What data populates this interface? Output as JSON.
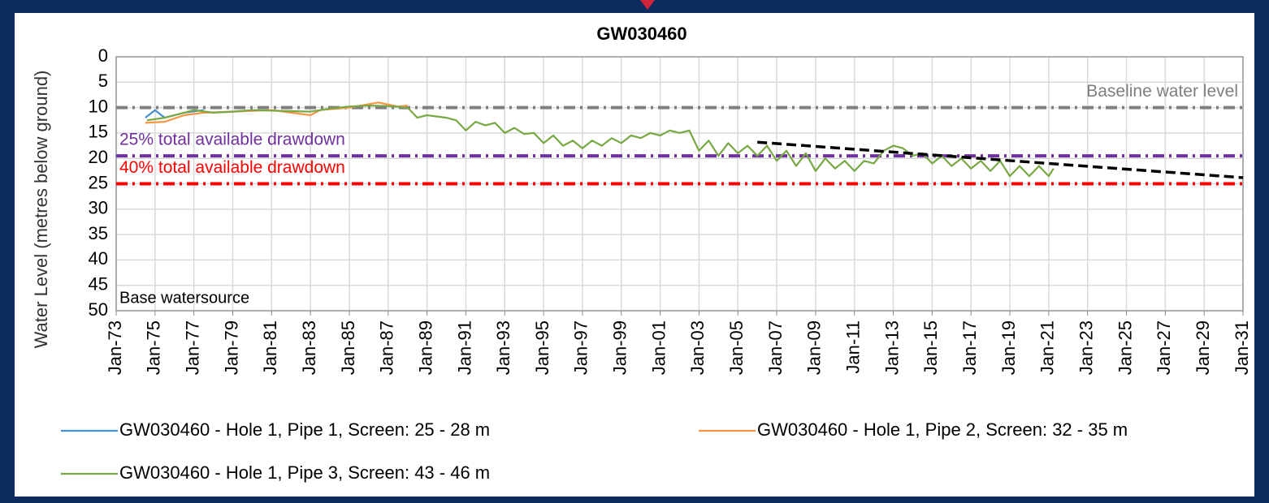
{
  "chart_data": {
    "type": "line",
    "title": "GW030460",
    "y_label": "Water Level (metres below ground)",
    "ylim": [
      0,
      50
    ],
    "y_inverted": true,
    "yticks": [
      0,
      5,
      10,
      15,
      20,
      25,
      30,
      35,
      40,
      45,
      50
    ],
    "xlim": [
      "1973-01",
      "2031-01"
    ],
    "xticks": [
      {
        "value": "1973-01",
        "label": "Jan-73"
      },
      {
        "value": "1975-01",
        "label": "Jan-75"
      },
      {
        "value": "1977-01",
        "label": "Jan-77"
      },
      {
        "value": "1979-01",
        "label": "Jan-79"
      },
      {
        "value": "1981-01",
        "label": "Jan-81"
      },
      {
        "value": "1983-01",
        "label": "Jan-83"
      },
      {
        "value": "1985-01",
        "label": "Jan-85"
      },
      {
        "value": "1987-01",
        "label": "Jan-87"
      },
      {
        "value": "1989-01",
        "label": "Jan-89"
      },
      {
        "value": "1991-01",
        "label": "Jan-91"
      },
      {
        "value": "1993-01",
        "label": "Jan-93"
      },
      {
        "value": "1995-01",
        "label": "Jan-95"
      },
      {
        "value": "1997-01",
        "label": "Jan-97"
      },
      {
        "value": "1999-01",
        "label": "Jan-99"
      },
      {
        "value": "2001-01",
        "label": "Jan-01"
      },
      {
        "value": "2003-01",
        "label": "Jan-03"
      },
      {
        "value": "2005-01",
        "label": "Jan-05"
      },
      {
        "value": "2007-01",
        "label": "Jan-07"
      },
      {
        "value": "2009-01",
        "label": "Jan-09"
      },
      {
        "value": "2011-01",
        "label": "Jan-11"
      },
      {
        "value": "2013-01",
        "label": "Jan-13"
      },
      {
        "value": "2015-01",
        "label": "Jan-15"
      },
      {
        "value": "2017-01",
        "label": "Jan-17"
      },
      {
        "value": "2019-01",
        "label": "Jan-19"
      },
      {
        "value": "2021-01",
        "label": "Jan-21"
      },
      {
        "value": "2023-01",
        "label": "Jan-23"
      },
      {
        "value": "2025-01",
        "label": "Jan-25"
      },
      {
        "value": "2027-01",
        "label": "Jan-27"
      },
      {
        "value": "2029-01",
        "label": "Jan-29"
      },
      {
        "value": "2031-01",
        "label": "Jan-31"
      }
    ],
    "grid": true,
    "annotation": "Base watersource",
    "reference_lines": [
      {
        "label": "Baseline water level",
        "value": 10,
        "color": "#7f7f7f",
        "label_position": "right"
      },
      {
        "label": "25% total available drawdown",
        "value": 19.5,
        "color": "#7030a0",
        "label_position": "left"
      },
      {
        "label": "40% total available drawdown",
        "value": 25,
        "color": "#ff0000",
        "label_position": "left"
      }
    ],
    "trend": {
      "color": "#000000",
      "x": [
        "2006-01",
        "2031-01"
      ],
      "values": [
        16.8,
        23.8
      ]
    },
    "series": [
      {
        "name": "GW030460 - Hole 1, Pipe 1, Screen: 25 - 28 m",
        "color": "#4a8fd0",
        "x": [
          "1974-07",
          "1975-01",
          "1975-07",
          "1976-07",
          "1977-07"
        ],
        "values": [
          12,
          10.5,
          12,
          11,
          10.5
        ]
      },
      {
        "name": "GW030460 - Hole 1, Pipe 2, Screen: 32 - 35 m",
        "color": "#f79646",
        "x": [
          "1974-07",
          "1975-07",
          "1976-07",
          "1977-07",
          "1979-01",
          "1981-01",
          "1983-01",
          "1983-07",
          "1985-01",
          "1986-07",
          "1987-07",
          "1988-01"
        ],
        "values": [
          13,
          12.8,
          11.5,
          11,
          10.8,
          10.5,
          11.5,
          10.5,
          10,
          9,
          9.8,
          9.6
        ]
      },
      {
        "name": "GW030460 - Hole 1, Pipe 3, Screen: 43 - 46 m",
        "color": "#77a843",
        "x": [
          "1974-08",
          "1975-07",
          "1976-07",
          "1977-01",
          "1978-01",
          "1979-01",
          "1980-01",
          "1981-01",
          "1982-01",
          "1983-01",
          "1984-01",
          "1985-01",
          "1986-01",
          "1987-01",
          "1988-01",
          "1988-07",
          "1989-01",
          "1990-01",
          "1990-07",
          "1991-01",
          "1991-07",
          "1992-01",
          "1992-07",
          "1993-01",
          "1993-07",
          "1994-01",
          "1994-07",
          "1995-01",
          "1995-07",
          "1996-01",
          "1996-07",
          "1997-01",
          "1997-07",
          "1998-01",
          "1998-07",
          "1999-01",
          "1999-07",
          "2000-01",
          "2000-07",
          "2001-01",
          "2001-07",
          "2002-01",
          "2002-07",
          "2003-01",
          "2003-07",
          "2004-01",
          "2004-07",
          "2005-01",
          "2005-07",
          "2006-01",
          "2006-07",
          "2007-01",
          "2007-07",
          "2008-01",
          "2008-07",
          "2009-01",
          "2009-07",
          "2010-01",
          "2010-07",
          "2011-01",
          "2011-07",
          "2012-01",
          "2012-07",
          "2013-01",
          "2013-07",
          "2014-01",
          "2014-07",
          "2015-01",
          "2015-07",
          "2016-01",
          "2016-07",
          "2017-01",
          "2017-07",
          "2018-01",
          "2018-07",
          "2019-01",
          "2019-07",
          "2020-01",
          "2020-07",
          "2021-01",
          "2021-04"
        ],
        "values": [
          12.5,
          12,
          11,
          10.5,
          11,
          10.8,
          10.5,
          10.6,
          10.7,
          10.8,
          10.2,
          9.8,
          9.6,
          9.7,
          10,
          12,
          11.5,
          12,
          12.5,
          14.5,
          12.8,
          13.5,
          13,
          15,
          14,
          15.2,
          15,
          17,
          15.5,
          17.5,
          16.5,
          18,
          16.5,
          17.5,
          16,
          17,
          15.5,
          16,
          15,
          15.5,
          14.5,
          15,
          14.5,
          18.5,
          16.5,
          19.5,
          17,
          19,
          17.5,
          19.5,
          17.5,
          20.5,
          18.5,
          21.5,
          19,
          22.5,
          20,
          22,
          20.5,
          22.5,
          20.5,
          21,
          18.5,
          17.5,
          18,
          19.5,
          19,
          21,
          19.5,
          21.5,
          20,
          22,
          20.5,
          22.5,
          20.5,
          23.5,
          21.5,
          23.5,
          21.5,
          23.5,
          22
        ]
      }
    ]
  }
}
